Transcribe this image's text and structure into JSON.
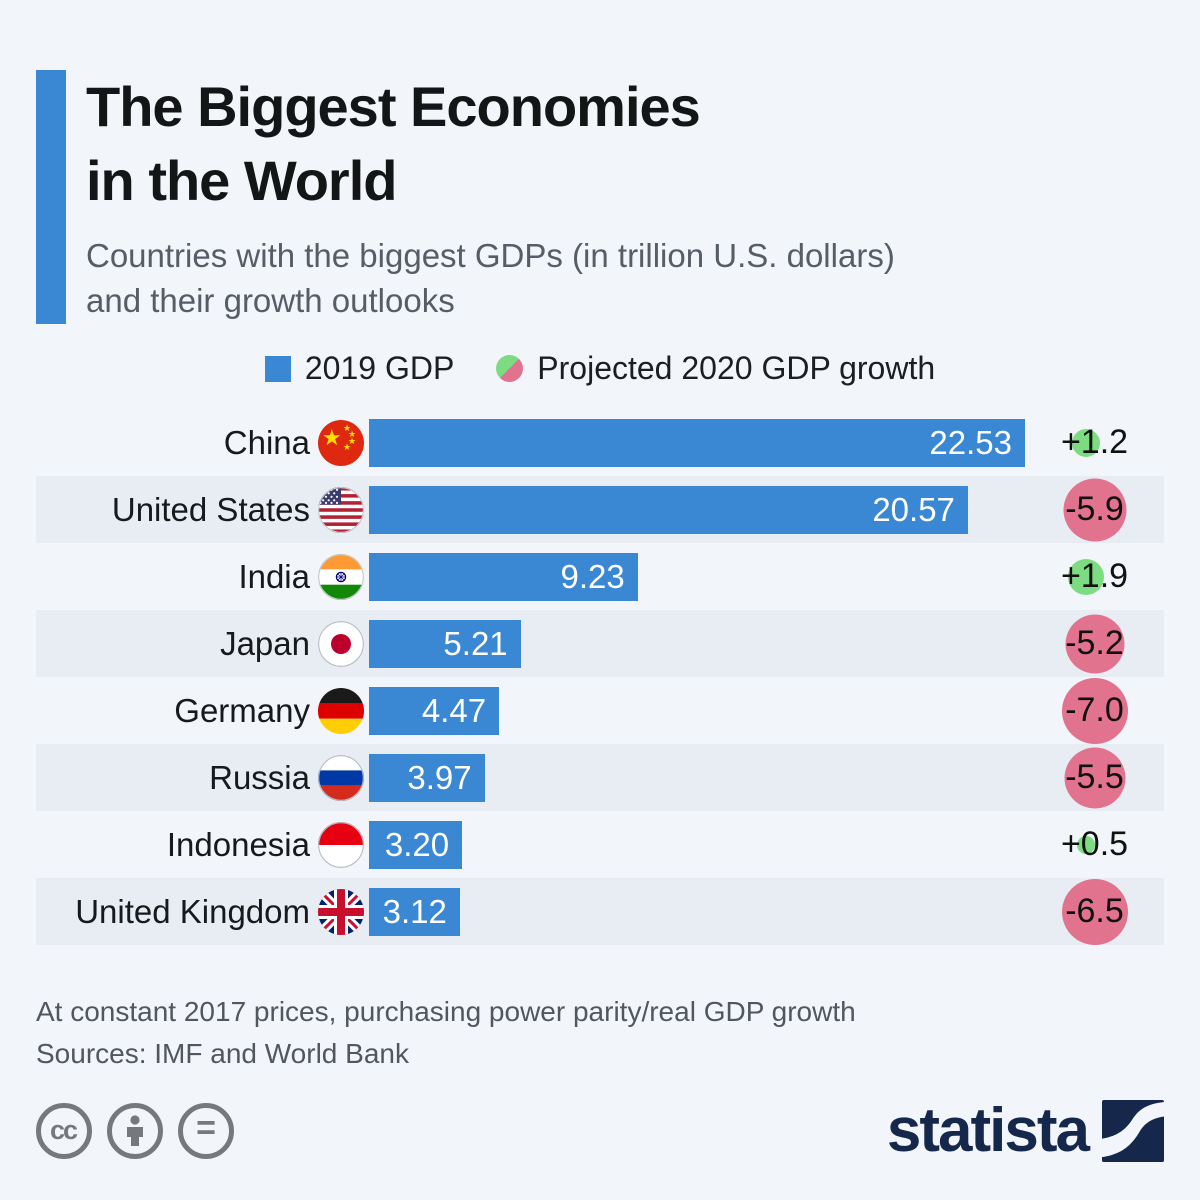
{
  "header": {
    "title_line1": "The Biggest Economies",
    "title_line2": "in the World",
    "subtitle_line1": "Countries with the biggest GDPs (in trillion U.S. dollars)",
    "subtitle_line2": "and their growth outlooks"
  },
  "legend": {
    "gdp": "2019 GDP",
    "growth": "Projected 2020 GDP growth"
  },
  "chart_data": {
    "type": "bar",
    "title": "The Biggest Economies in the World",
    "unit": "trillion U.S. dollars",
    "xlim": [
      0,
      22.53
    ],
    "legend_position": "top",
    "series": [
      {
        "name": "2019 GDP",
        "color": "#3a87d4"
      },
      {
        "name": "Projected 2020 GDP growth",
        "color_positive": "#7ddc82",
        "color_negative": "#e2738f"
      }
    ],
    "rows": [
      {
        "country": "China",
        "flag": "china-flag",
        "gdp": 22.53,
        "gdp_label": "22.53",
        "growth": 1.2,
        "growth_label": "+1.2"
      },
      {
        "country": "United States",
        "flag": "us-flag",
        "gdp": 20.57,
        "gdp_label": "20.57",
        "growth": -5.9,
        "growth_label": "-5.9"
      },
      {
        "country": "India",
        "flag": "india-flag",
        "gdp": 9.23,
        "gdp_label": "9.23",
        "growth": 1.9,
        "growth_label": "+1.9"
      },
      {
        "country": "Japan",
        "flag": "japan-flag",
        "gdp": 5.21,
        "gdp_label": "5.21",
        "growth": -5.2,
        "growth_label": "-5.2"
      },
      {
        "country": "Germany",
        "flag": "germany-flag",
        "gdp": 4.47,
        "gdp_label": "4.47",
        "growth": -7.0,
        "growth_label": "-7.0"
      },
      {
        "country": "Russia",
        "flag": "russia-flag",
        "gdp": 3.97,
        "gdp_label": "3.97",
        "growth": -5.5,
        "growth_label": "-5.5"
      },
      {
        "country": "Indonesia",
        "flag": "indonesia-flag",
        "gdp": 3.2,
        "gdp_label": "3.20",
        "growth": 0.5,
        "growth_label": "+0.5"
      },
      {
        "country": "United Kingdom",
        "flag": "uk-flag",
        "gdp": 3.12,
        "gdp_label": "3.12",
        "growth": -6.5,
        "growth_label": "-6.5"
      }
    ],
    "colors": {
      "bar": "#3a87d4",
      "growth_positive": "#7ddc82",
      "growth_negative": "#e2738f"
    }
  },
  "footer": {
    "note": "At constant 2017 prices, purchasing power parity/real GDP growth",
    "sources": "Sources: IMF and World Bank"
  },
  "branding": {
    "logo_text": "statista"
  }
}
